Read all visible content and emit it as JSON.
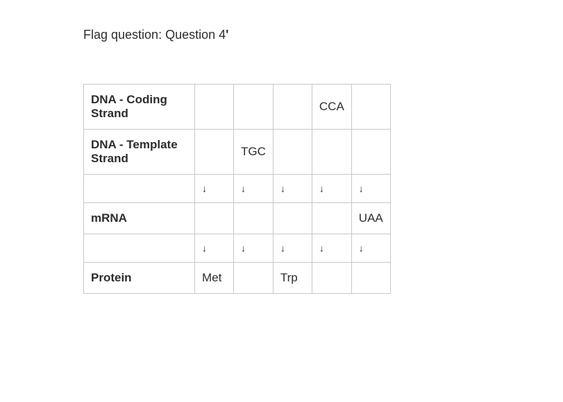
{
  "flag": {
    "prefix": "Flag question: Question 4",
    "marker": "'"
  },
  "table": {
    "rows": {
      "coding": {
        "label": "DNA - Coding Strand",
        "cells": [
          "",
          "",
          "",
          "CCA",
          ""
        ]
      },
      "template": {
        "label": "DNA - Template Strand",
        "cells": [
          "",
          "TGC",
          "",
          "",
          ""
        ]
      },
      "arrows1": {
        "label": "",
        "cells": [
          "↓",
          "↓",
          "↓",
          "↓",
          "↓"
        ]
      },
      "mrna": {
        "label": "mRNA",
        "cells": [
          "",
          "",
          "",
          "",
          "UAA"
        ]
      },
      "arrows2": {
        "label": "",
        "cells": [
          "↓",
          "↓",
          "↓",
          "↓",
          "↓"
        ]
      },
      "protein": {
        "label": "Protein",
        "cells": [
          "Met",
          "",
          "Trp",
          "",
          ""
        ]
      }
    }
  },
  "style": {
    "border_color": "#c8c8c8",
    "text_color": "#2d2d2d",
    "background_color": "#ffffff",
    "header_fontweight": 700,
    "cell_fontsize": 17,
    "label_fontsize": 18
  }
}
